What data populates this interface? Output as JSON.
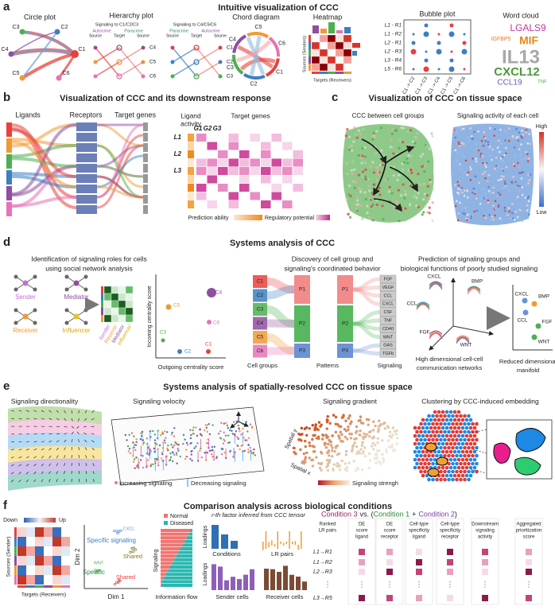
{
  "a": {
    "letter": "a",
    "title": "Intuitive visualization of CCC",
    "circle": {
      "title": "Circle plot",
      "nodes": [
        "C3",
        "C2",
        "C4",
        "C1",
        "C5",
        "C6"
      ]
    },
    "hierarchy": {
      "title": "Hierarchy plot",
      "left": "Signaling to C1/C2/C3",
      "right": "Signaling to C4/C5/C6",
      "left_groups": [
        "Autocrine",
        "Paracrine"
      ],
      "right_groups": [
        "Paracrine",
        "Autocrine"
      ],
      "left_roles": [
        "Source",
        "Target",
        "Source"
      ],
      "right_roles": [
        "Source",
        "Target",
        "Source"
      ],
      "left_nodes": [
        "C4",
        "C5",
        "C6"
      ],
      "right_nodes": [
        "C1",
        "C2",
        "C3"
      ]
    },
    "chord": {
      "title": "Chord diagram",
      "nodes": [
        "C5",
        "C6",
        "C1",
        "C2",
        "C3",
        "C4"
      ]
    },
    "heatmap": {
      "title": "Heatmap",
      "ylabel": "Sources (Senders)",
      "xlabel": "Targets (Receivers)"
    },
    "bubble": {
      "title": "Bubble plot",
      "rows": [
        "L1 - R1",
        "L1 - R2",
        "L2 - R1",
        "L2 - R3",
        "L3 - R4",
        "L5 - R6"
      ],
      "cols": [
        "C1 -> C2",
        "C1 -> C3",
        "C1 -> C4",
        "C1 -> C5",
        "C1 -> C6"
      ]
    },
    "wordcloud": {
      "title": "Word cloud",
      "words": [
        "LGALS9",
        "IGFBP5",
        "MIF",
        "IL13",
        "CXCL12",
        "CCL19",
        "TNF"
      ]
    }
  },
  "b": {
    "letter": "b",
    "title": "Visualization of CCC and its downstream response",
    "sankey": [
      "Ligands",
      "Receptors",
      "Target genes"
    ],
    "ligand_activity": [
      "Ligand",
      "activity"
    ],
    "target_genes": "Target genes",
    "genes": [
      "G1",
      "G2",
      "G3"
    ],
    "ligands": [
      "L1",
      "L2",
      "L3"
    ],
    "legend": [
      "Prediction ability",
      "Regulatory potential"
    ]
  },
  "c": {
    "letter": "c",
    "title": "Visualization of CCC on tissue space",
    "left": "CCC between cell groups",
    "right": "Signaling activity of each cell",
    "high": "High",
    "low": "Low"
  },
  "d": {
    "letter": "d",
    "title": "Systems analysis of CCC",
    "roles_title": [
      "Identification of signaling roles for cells",
      "using social network analysis"
    ],
    "roles": [
      "Sender",
      "Mediator",
      "Receiver",
      "Influencer"
    ],
    "heat_labels": [
      "Sender",
      "Receiver",
      "Mediator",
      "Influencer"
    ],
    "scatter": {
      "ylabel": "Incoming centrality score",
      "xlabel": "Outgoing centrality score",
      "points": [
        "C4",
        "C5",
        "C6",
        "C3",
        "C2",
        "C1"
      ]
    },
    "patterns_title": [
      "Discovery of cell group and",
      "signaling's coordinated behavior"
    ],
    "groups": [
      "C1",
      "C2",
      "C3",
      "C4",
      "C5",
      "C6"
    ],
    "patterns": [
      "P1",
      "P2",
      "P3"
    ],
    "signaling": [
      "FGF",
      "VEGF",
      "CCL",
      "CXCL",
      "CSF",
      "TNF",
      "CD40",
      "WNT",
      "GAS",
      "TGFb"
    ],
    "columns": [
      "Cell groups",
      "Patterns",
      "Signaling"
    ],
    "manifold_title": [
      "Prediction of signaling groups and",
      "biological functions of poorly studied signaling"
    ],
    "high_dim_labels": [
      "CXCL",
      "CCL",
      "BMP",
      "FGF",
      "WNT"
    ],
    "high_dim": [
      "High dimensional cell-cell",
      "communication networks"
    ],
    "low_dim_labels": [
      "CXCL",
      "BMP",
      "CCL",
      "FGF",
      "WNT"
    ],
    "low_dim": [
      "Reduced dimensional",
      "manifold"
    ]
  },
  "e": {
    "letter": "e",
    "title": "Systems analysis of spatially-resolved CCC on tissue space",
    "panels": [
      "Signaling directionality",
      "Signaling velocity",
      "Signaling gradient",
      "Clustering by CCC-induced embedding"
    ],
    "velocity_legend": [
      "Increasing signaling",
      "Decreasing signaling"
    ],
    "spatial_y": "Spatial y",
    "spatial_x": "Spatial x",
    "gradient_legend": "Signaling strengh"
  },
  "f": {
    "letter": "f",
    "title": "Comparison analysis across biological conditions",
    "heatmap": {
      "down": "Down",
      "up": "Up",
      "ylabel": "Sources (Sender)",
      "xlabel": "Targets (Receivers)"
    },
    "scatter": {
      "ylabel": "Dim 2",
      "xlabel": "Dim 1",
      "labels": [
        "CXCL",
        "Specific signaling",
        "Shared",
        "WNT",
        "Specific",
        "Shared"
      ]
    },
    "flow": {
      "legend": [
        "Normal",
        "Diseased"
      ],
      "ylabel": "Signaling",
      "xlabel": "Information flow"
    },
    "tensor": {
      "title": "r-th factor inferred from CCC tensor",
      "ylabel": [
        "Loadings",
        "Loadings"
      ],
      "panels": [
        "Conditions",
        "LR pairs",
        "Sender cells",
        "Receiver cells"
      ]
    },
    "ranking": {
      "title": [
        "Condition 3",
        "vs. (",
        "Condition 1",
        "+",
        "Condition 2",
        ")"
      ],
      "headers": [
        [
          "Ranked",
          "LR pairs"
        ],
        [
          "DE",
          "score",
          "ligand"
        ],
        [
          "DE",
          "score",
          "receptor"
        ],
        [
          "Cell-type",
          "specificity",
          "ligand"
        ],
        [
          "Cell-type",
          "specificity",
          "receptor"
        ],
        [
          "Downstream",
          "signaling",
          "activity"
        ],
        [
          "Aggregated",
          "prioritization",
          "score"
        ]
      ],
      "rows": [
        "L1→R1",
        "L1→R2",
        "L2→R3",
        "L3→R5"
      ]
    }
  }
}
